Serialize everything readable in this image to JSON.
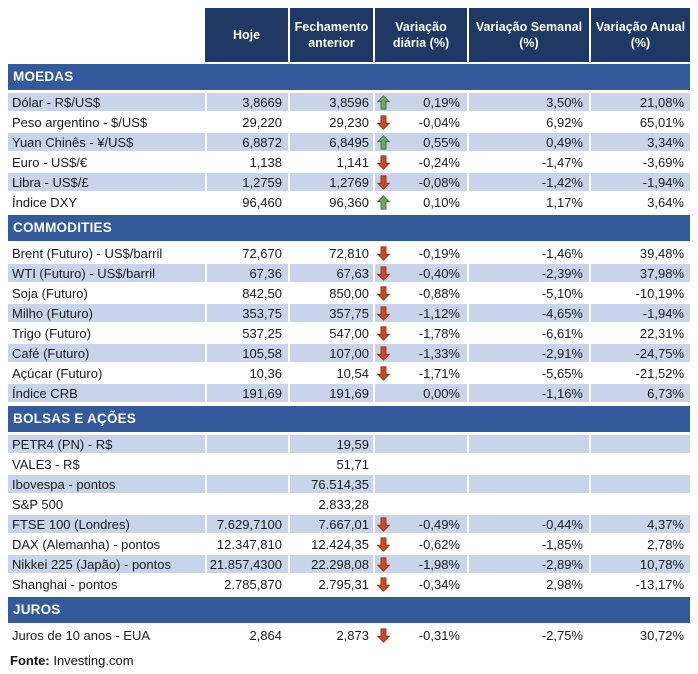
{
  "colors": {
    "header_bg": "#1F3864",
    "section_bg": "#345A9C",
    "row_alt_bg": "#C7D4EA",
    "arrow_up_fill": "#75A462",
    "arrow_up_stroke": "#44703A",
    "arrow_down_fill": "#CC4A22",
    "arrow_down_stroke": "#93331A"
  },
  "chart_data": {
    "type": "table",
    "columns": [
      "",
      "Hoje",
      "Fechamento anterior",
      "Variação diária (%)",
      "Variação Semanal (%)",
      "Variação Anual (%)"
    ],
    "sections": [
      {
        "title": "MOEDAS",
        "rows": [
          {
            "label": "Dólar - R$/US$",
            "hoje": "3,8669",
            "fechamento": "3,8596",
            "trend": "up",
            "diaria": "0,19%",
            "semanal": "3,50%",
            "anual": "21,08%"
          },
          {
            "label": "Peso argentino - $/US$",
            "hoje": "29,220",
            "fechamento": "29,230",
            "trend": "down",
            "diaria": "-0,04%",
            "semanal": "6,92%",
            "anual": "65,01%"
          },
          {
            "label": "Yuan Chinês - ¥/US$",
            "hoje": "6,8872",
            "fechamento": "6,8495",
            "trend": "up",
            "diaria": "0,55%",
            "semanal": "0,49%",
            "anual": "3,34%"
          },
          {
            "label": "Euro - US$/€",
            "hoje": "1,138",
            "fechamento": "1,141",
            "trend": "down",
            "diaria": "-0,24%",
            "semanal": "-1,47%",
            "anual": "-3,69%"
          },
          {
            "label": "Libra - US$/£",
            "hoje": "1,2759",
            "fechamento": "1,2769",
            "trend": "down",
            "diaria": "-0,08%",
            "semanal": "-1,42%",
            "anual": "-1,94%"
          },
          {
            "label": "Índice DXY",
            "hoje": "96,460",
            "fechamento": "96,360",
            "trend": "up",
            "diaria": "0,10%",
            "semanal": "1,17%",
            "anual": "3,64%"
          }
        ]
      },
      {
        "title": "COMMODITIES",
        "rows": [
          {
            "label": "Brent (Futuro) - US$/barril",
            "hoje": "72,670",
            "fechamento": "72,810",
            "trend": "down",
            "diaria": "-0,19%",
            "semanal": "-1,46%",
            "anual": "39,48%"
          },
          {
            "label": "WTI (Futuro) - US$/barril",
            "hoje": "67,36",
            "fechamento": "67,63",
            "trend": "down",
            "diaria": "-0,40%",
            "semanal": "-2,39%",
            "anual": "37,98%"
          },
          {
            "label": "Soja (Futuro)",
            "hoje": "842,50",
            "fechamento": "850,00",
            "trend": "down",
            "diaria": "-0,88%",
            "semanal": "-5,10%",
            "anual": "-10,19%"
          },
          {
            "label": "Milho (Futuro)",
            "hoje": "353,75",
            "fechamento": "357,75",
            "trend": "down",
            "diaria": "-1,12%",
            "semanal": "-4,65%",
            "anual": "-1,94%"
          },
          {
            "label": "Trigo (Futuro)",
            "hoje": "537,25",
            "fechamento": "547,00",
            "trend": "down",
            "diaria": "-1,78%",
            "semanal": "-6,61%",
            "anual": "22,31%"
          },
          {
            "label": "Café (Futuro)",
            "hoje": "105,58",
            "fechamento": "107,00",
            "trend": "down",
            "diaria": "-1,33%",
            "semanal": "-2,91%",
            "anual": "-24,75%"
          },
          {
            "label": "Açúcar (Futuro)",
            "hoje": "10,36",
            "fechamento": "10,54",
            "trend": "down",
            "diaria": "-1,71%",
            "semanal": "-5,65%",
            "anual": "-21,52%"
          },
          {
            "label": "Índice CRB",
            "hoje": "191,69",
            "fechamento": "191,69",
            "trend": "none",
            "diaria": "0,00%",
            "semanal": "-1,16%",
            "anual": "6,73%"
          }
        ]
      },
      {
        "title": "BOLSAS E AÇÕES",
        "rows": [
          {
            "label": "PETR4 (PN) - R$",
            "hoje": "",
            "fechamento": "19,59",
            "trend": "none",
            "diaria": "",
            "semanal": "",
            "anual": ""
          },
          {
            "label": "VALE3 - R$",
            "hoje": "",
            "fechamento": "51,71",
            "trend": "none",
            "diaria": "",
            "semanal": "",
            "anual": ""
          },
          {
            "label": "Ibovespa - pontos",
            "hoje": "",
            "fechamento": "76.514,35",
            "trend": "none",
            "diaria": "",
            "semanal": "",
            "anual": ""
          },
          {
            "label": "S&P 500",
            "hoje": "",
            "fechamento": "2.833,28",
            "trend": "none",
            "diaria": "",
            "semanal": "",
            "anual": ""
          },
          {
            "label": "FTSE 100 (Londres)",
            "hoje": "7.629,7100",
            "fechamento": "7.667,01",
            "trend": "down",
            "diaria": "-0,49%",
            "semanal": "-0,44%",
            "anual": "4,37%"
          },
          {
            "label": "DAX (Alemanha) - pontos",
            "hoje": "12.347,810",
            "fechamento": "12.424,35",
            "trend": "down",
            "diaria": "-0,62%",
            "semanal": "-1,85%",
            "anual": "2,78%"
          },
          {
            "label": "Nikkei 225 (Japão) - pontos",
            "hoje": "21.857,4300",
            "fechamento": "22.298,08",
            "trend": "down",
            "diaria": "-1,98%",
            "semanal": "-2,89%",
            "anual": "10,78%"
          },
          {
            "label": "Shanghai - pontos",
            "hoje": "2.785,870",
            "fechamento": "2.795,31",
            "trend": "down",
            "diaria": "-0,34%",
            "semanal": "2,98%",
            "anual": "-13,17%"
          }
        ]
      },
      {
        "title": "JUROS",
        "rows": [
          {
            "label": "Juros de 10 anos - EUA",
            "hoje": "2,864",
            "fechamento": "2,873",
            "trend": "down",
            "diaria": "-0,31%",
            "semanal": "-2,75%",
            "anual": "30,72%"
          }
        ]
      }
    ],
    "source_label": "Fonte:",
    "source_value": "Investing.com"
  }
}
